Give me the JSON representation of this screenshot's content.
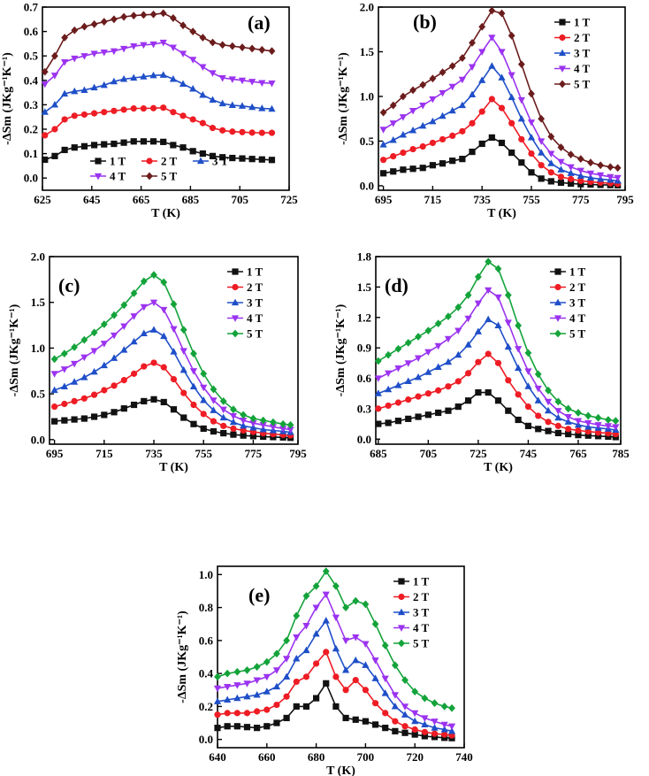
{
  "colors": {
    "1 T": "#111111",
    "2 T": "#ee1c24",
    "3 T": "#1f4fc8",
    "4 T": "#9b33f0",
    "5 T_a": "#6b1c1c",
    "5 T": "#13a33a"
  },
  "chart_data": [
    {
      "type": "line",
      "panel_label": "(a)",
      "xlabel": "T (K)",
      "ylabel": "-ΔSm (JKg⁻¹K⁻¹)",
      "xlim": [
        625,
        725
      ],
      "ylim": [
        -0.05,
        0.7
      ],
      "xticks": [
        "625",
        "645",
        "665",
        "685",
        "705",
        "725"
      ],
      "yticks": [
        "0.0",
        "0.1",
        "0.2",
        "0.3",
        "0.4",
        "0.5",
        "0.6",
        "0.7"
      ],
      "legend": "bottom-two-rows",
      "x": [
        626,
        630,
        634,
        638,
        642,
        646,
        650,
        654,
        658,
        662,
        666,
        670,
        674,
        678,
        682,
        686,
        690,
        694,
        698,
        702,
        706,
        710,
        714,
        718
      ],
      "series": [
        {
          "name": "1 T",
          "marker": "square",
          "color": "#111111",
          "values": [
            0.075,
            0.09,
            0.115,
            0.125,
            0.13,
            0.135,
            0.138,
            0.14,
            0.145,
            0.15,
            0.15,
            0.15,
            0.148,
            0.135,
            0.125,
            0.11,
            0.1,
            0.09,
            0.085,
            0.082,
            0.08,
            0.078,
            0.076,
            0.074
          ]
        },
        {
          "name": "2 T",
          "marker": "circle",
          "color": "#ee1c24",
          "values": [
            0.175,
            0.2,
            0.24,
            0.255,
            0.26,
            0.265,
            0.27,
            0.275,
            0.28,
            0.285,
            0.285,
            0.286,
            0.288,
            0.27,
            0.255,
            0.24,
            0.225,
            0.205,
            0.195,
            0.19,
            0.188,
            0.186,
            0.185,
            0.185
          ]
        },
        {
          "name": "3 T",
          "marker": "triangle-up",
          "color": "#1f4fc8",
          "values": [
            0.27,
            0.3,
            0.345,
            0.355,
            0.36,
            0.37,
            0.38,
            0.395,
            0.405,
            0.41,
            0.415,
            0.42,
            0.422,
            0.405,
            0.385,
            0.365,
            0.34,
            0.32,
            0.305,
            0.298,
            0.295,
            0.29,
            0.285,
            0.283
          ]
        },
        {
          "name": "4 T",
          "marker": "triangle-down",
          "color": "#9b33f0",
          "values": [
            0.385,
            0.42,
            0.475,
            0.49,
            0.5,
            0.51,
            0.515,
            0.52,
            0.53,
            0.54,
            0.545,
            0.548,
            0.555,
            0.535,
            0.51,
            0.485,
            0.455,
            0.43,
            0.41,
            0.405,
            0.4,
            0.395,
            0.39,
            0.388
          ]
        },
        {
          "name": "5 T",
          "marker": "diamond",
          "color": "#6b1c1c",
          "values": [
            0.435,
            0.5,
            0.575,
            0.605,
            0.62,
            0.63,
            0.64,
            0.65,
            0.66,
            0.665,
            0.668,
            0.67,
            0.675,
            0.655,
            0.625,
            0.6,
            0.575,
            0.555,
            0.545,
            0.54,
            0.535,
            0.53,
            0.525,
            0.52
          ]
        }
      ]
    },
    {
      "type": "line",
      "panel_label": "(b)",
      "xlabel": "T (K)",
      "ylabel": "-ΔSm (JKg⁻¹K⁻¹)",
      "xlim": [
        693,
        793
      ],
      "ylim": [
        -0.05,
        2.0
      ],
      "xticks": [
        "695",
        "715",
        "735",
        "755",
        "775",
        "795"
      ],
      "yticks": [
        "0.0",
        "0.5",
        "1.0",
        "1.5",
        "2.0"
      ],
      "legend": "top-right",
      "x": [
        695,
        699,
        703,
        707,
        711,
        715,
        719,
        723,
        727,
        731,
        735,
        739,
        743,
        747,
        751,
        755,
        759,
        763,
        767,
        771,
        775,
        779,
        783,
        787,
        790
      ],
      "series": [
        {
          "name": "1 T",
          "marker": "square",
          "color": "#111111",
          "values": [
            0.14,
            0.16,
            0.18,
            0.19,
            0.2,
            0.23,
            0.25,
            0.28,
            0.3,
            0.38,
            0.47,
            0.54,
            0.48,
            0.37,
            0.26,
            0.15,
            0.08,
            0.05,
            0.035,
            0.025,
            0.018,
            0.014,
            0.01,
            0.008,
            0.006
          ]
        },
        {
          "name": "2 T",
          "marker": "circle",
          "color": "#ee1c24",
          "values": [
            0.29,
            0.33,
            0.37,
            0.41,
            0.44,
            0.48,
            0.52,
            0.56,
            0.61,
            0.7,
            0.83,
            0.97,
            0.87,
            0.7,
            0.52,
            0.36,
            0.23,
            0.15,
            0.1,
            0.075,
            0.055,
            0.045,
            0.035,
            0.028,
            0.022
          ]
        },
        {
          "name": "3 T",
          "marker": "triangle-up",
          "color": "#1f4fc8",
          "values": [
            0.46,
            0.51,
            0.57,
            0.62,
            0.67,
            0.72,
            0.78,
            0.84,
            0.9,
            1.02,
            1.18,
            1.34,
            1.21,
            0.99,
            0.75,
            0.54,
            0.37,
            0.25,
            0.18,
            0.14,
            0.11,
            0.09,
            0.075,
            0.065,
            0.055
          ]
        },
        {
          "name": "4 T",
          "marker": "triangle-down",
          "color": "#9b33f0",
          "values": [
            0.63,
            0.7,
            0.77,
            0.84,
            0.9,
            0.97,
            1.04,
            1.11,
            1.19,
            1.33,
            1.5,
            1.66,
            1.5,
            1.24,
            0.96,
            0.71,
            0.5,
            0.36,
            0.27,
            0.21,
            0.17,
            0.14,
            0.12,
            0.1,
            0.09
          ]
        },
        {
          "name": "5 T",
          "marker": "diamond",
          "color": "#6b1c1c",
          "values": [
            0.82,
            0.9,
            1.0,
            1.07,
            1.13,
            1.2,
            1.27,
            1.34,
            1.43,
            1.6,
            1.78,
            1.96,
            1.93,
            1.68,
            1.36,
            1.03,
            0.75,
            0.55,
            0.43,
            0.35,
            0.3,
            0.26,
            0.23,
            0.21,
            0.2
          ]
        }
      ]
    },
    {
      "type": "line",
      "panel_label": "(c)",
      "xlabel": "T (K)",
      "ylabel": "-ΔSm (JKg⁻¹K⁻¹)",
      "xlim": [
        693,
        793
      ],
      "ylim": [
        -0.05,
        2.0
      ],
      "xticks": [
        "695",
        "715",
        "735",
        "755",
        "775",
        "795"
      ],
      "yticks": [
        "0.0",
        "0.5",
        "1.0",
        "1.5",
        "2.0"
      ],
      "legend": "top-right",
      "x": [
        695,
        699,
        703,
        707,
        711,
        715,
        719,
        723,
        727,
        731,
        735,
        739,
        743,
        747,
        751,
        755,
        759,
        763,
        767,
        771,
        775,
        779,
        783,
        787,
        790
      ],
      "series": [
        {
          "name": "1 T",
          "marker": "square",
          "color": "#111111",
          "values": [
            0.2,
            0.21,
            0.22,
            0.23,
            0.25,
            0.27,
            0.3,
            0.34,
            0.38,
            0.42,
            0.44,
            0.41,
            0.33,
            0.24,
            0.17,
            0.12,
            0.09,
            0.07,
            0.055,
            0.045,
            0.038,
            0.032,
            0.028,
            0.024,
            0.02
          ]
        },
        {
          "name": "2 T",
          "marker": "circle",
          "color": "#ee1c24",
          "values": [
            0.36,
            0.39,
            0.42,
            0.45,
            0.49,
            0.54,
            0.59,
            0.65,
            0.72,
            0.8,
            0.84,
            0.79,
            0.66,
            0.51,
            0.38,
            0.28,
            0.2,
            0.15,
            0.12,
            0.1,
            0.085,
            0.07,
            0.06,
            0.052,
            0.046
          ]
        },
        {
          "name": "3 T",
          "marker": "triangle-up",
          "color": "#1f4fc8",
          "values": [
            0.54,
            0.58,
            0.63,
            0.68,
            0.74,
            0.81,
            0.89,
            0.98,
            1.07,
            1.16,
            1.2,
            1.13,
            0.96,
            0.76,
            0.58,
            0.43,
            0.32,
            0.24,
            0.19,
            0.15,
            0.13,
            0.11,
            0.1,
            0.09,
            0.08
          ]
        },
        {
          "name": "4 T",
          "marker": "triangle-down",
          "color": "#9b33f0",
          "values": [
            0.72,
            0.77,
            0.83,
            0.9,
            0.97,
            1.05,
            1.14,
            1.24,
            1.35,
            1.45,
            1.5,
            1.42,
            1.21,
            0.97,
            0.75,
            0.57,
            0.43,
            0.33,
            0.26,
            0.21,
            0.18,
            0.16,
            0.14,
            0.12,
            0.11
          ]
        },
        {
          "name": "5 T",
          "marker": "diamond",
          "color": "#13a33a",
          "values": [
            0.88,
            0.94,
            1.01,
            1.09,
            1.17,
            1.26,
            1.36,
            1.47,
            1.6,
            1.73,
            1.8,
            1.72,
            1.48,
            1.2,
            0.94,
            0.72,
            0.55,
            0.42,
            0.33,
            0.27,
            0.23,
            0.21,
            0.19,
            0.17,
            0.16
          ]
        }
      ]
    },
    {
      "type": "line",
      "panel_label": "(d)",
      "xlabel": "T (K)",
      "ylabel": "-ΔSm (JKg⁻¹K⁻¹)",
      "xlim": [
        684,
        782
      ],
      "ylim": [
        -0.05,
        1.8
      ],
      "xticks": [
        "685",
        "705",
        "725",
        "745",
        "765",
        "785"
      ],
      "yticks": [
        "0.0",
        "0.3",
        "0.6",
        "0.9",
        "1.2",
        "1.5",
        "1.8"
      ],
      "legend": "top-right",
      "x": [
        685,
        689,
        693,
        697,
        701,
        705,
        709,
        713,
        717,
        721,
        725,
        729,
        733,
        737,
        741,
        745,
        749,
        753,
        757,
        761,
        765,
        769,
        773,
        777,
        780
      ],
      "series": [
        {
          "name": "1 T",
          "marker": "square",
          "color": "#111111",
          "values": [
            0.15,
            0.16,
            0.18,
            0.2,
            0.22,
            0.24,
            0.26,
            0.28,
            0.32,
            0.38,
            0.46,
            0.46,
            0.38,
            0.28,
            0.19,
            0.13,
            0.1,
            0.08,
            0.06,
            0.05,
            0.04,
            0.035,
            0.03,
            0.025,
            0.02
          ]
        },
        {
          "name": "2 T",
          "marker": "circle",
          "color": "#ee1c24",
          "values": [
            0.3,
            0.33,
            0.36,
            0.39,
            0.42,
            0.45,
            0.48,
            0.52,
            0.57,
            0.65,
            0.76,
            0.84,
            0.75,
            0.58,
            0.44,
            0.32,
            0.23,
            0.17,
            0.13,
            0.1,
            0.085,
            0.075,
            0.065,
            0.058,
            0.05
          ]
        },
        {
          "name": "3 T",
          "marker": "triangle-up",
          "color": "#1f4fc8",
          "values": [
            0.45,
            0.49,
            0.53,
            0.57,
            0.61,
            0.66,
            0.71,
            0.76,
            0.83,
            0.93,
            1.06,
            1.18,
            1.12,
            0.91,
            0.7,
            0.52,
            0.38,
            0.28,
            0.21,
            0.17,
            0.14,
            0.12,
            0.11,
            0.1,
            0.09
          ]
        },
        {
          "name": "4 T",
          "marker": "triangle-down",
          "color": "#9b33f0",
          "values": [
            0.6,
            0.65,
            0.7,
            0.75,
            0.8,
            0.86,
            0.92,
            0.99,
            1.07,
            1.19,
            1.34,
            1.47,
            1.4,
            1.15,
            0.89,
            0.67,
            0.5,
            0.37,
            0.28,
            0.22,
            0.18,
            0.16,
            0.14,
            0.13,
            0.12
          ]
        },
        {
          "name": "5 T",
          "marker": "diamond",
          "color": "#13a33a",
          "values": [
            0.77,
            0.83,
            0.89,
            0.95,
            1.01,
            1.07,
            1.14,
            1.21,
            1.3,
            1.42,
            1.6,
            1.75,
            1.68,
            1.42,
            1.12,
            0.85,
            0.64,
            0.48,
            0.37,
            0.3,
            0.26,
            0.23,
            0.21,
            0.19,
            0.18
          ]
        }
      ]
    },
    {
      "type": "line",
      "panel_label": "(e)",
      "xlabel": "T (K)",
      "ylabel": "-ΔSm (JKg⁻¹K⁻¹)",
      "xlim": [
        640,
        740
      ],
      "ylim": [
        -0.05,
        1.05
      ],
      "xticks": [
        "640",
        "660",
        "680",
        "700",
        "720",
        "740"
      ],
      "yticks": [
        "0.0",
        "0.2",
        "0.4",
        "0.6",
        "0.8",
        "1.0"
      ],
      "legend": "top-right",
      "x": [
        640,
        644,
        648,
        652,
        656,
        660,
        664,
        668,
        672,
        676,
        680,
        684,
        688,
        692,
        696,
        700,
        704,
        708,
        712,
        716,
        720,
        724,
        728,
        732,
        735
      ],
      "series": [
        {
          "name": "1 T",
          "marker": "square",
          "color": "#111111",
          "values": [
            0.07,
            0.08,
            0.08,
            0.075,
            0.07,
            0.08,
            0.1,
            0.13,
            0.2,
            0.2,
            0.25,
            0.34,
            0.2,
            0.13,
            0.12,
            0.11,
            0.09,
            0.07,
            0.05,
            0.04,
            0.03,
            0.02,
            0.015,
            0.01,
            0.008
          ]
        },
        {
          "name": "2 T",
          "marker": "circle",
          "color": "#ee1c24",
          "values": [
            0.15,
            0.16,
            0.16,
            0.16,
            0.17,
            0.18,
            0.21,
            0.26,
            0.35,
            0.38,
            0.46,
            0.53,
            0.38,
            0.3,
            0.36,
            0.3,
            0.22,
            0.16,
            0.11,
            0.08,
            0.06,
            0.045,
            0.035,
            0.03,
            0.025
          ]
        },
        {
          "name": "3 T",
          "marker": "triangle-up",
          "color": "#1f4fc8",
          "values": [
            0.23,
            0.24,
            0.25,
            0.26,
            0.27,
            0.29,
            0.32,
            0.38,
            0.49,
            0.54,
            0.64,
            0.72,
            0.55,
            0.42,
            0.48,
            0.45,
            0.37,
            0.28,
            0.2,
            0.15,
            0.11,
            0.09,
            0.07,
            0.06,
            0.05
          ]
        },
        {
          "name": "4 T",
          "marker": "triangle-down",
          "color": "#9b33f0",
          "values": [
            0.31,
            0.32,
            0.33,
            0.34,
            0.36,
            0.38,
            0.42,
            0.49,
            0.62,
            0.69,
            0.8,
            0.88,
            0.74,
            0.6,
            0.62,
            0.58,
            0.48,
            0.37,
            0.27,
            0.2,
            0.16,
            0.13,
            0.11,
            0.09,
            0.08
          ]
        },
        {
          "name": "5 T",
          "marker": "diamond",
          "color": "#13a33a",
          "values": [
            0.38,
            0.4,
            0.41,
            0.42,
            0.44,
            0.47,
            0.52,
            0.6,
            0.75,
            0.87,
            0.93,
            1.02,
            0.93,
            0.8,
            0.84,
            0.82,
            0.7,
            0.57,
            0.45,
            0.36,
            0.29,
            0.25,
            0.22,
            0.2,
            0.19
          ]
        }
      ]
    }
  ]
}
